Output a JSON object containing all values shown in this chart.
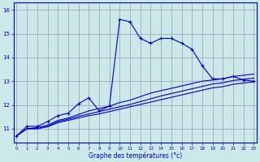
{
  "xlabel": "Graphe des températures (°c)",
  "bg_color": "#cce8e8",
  "grid_color": "#9999bb",
  "line_color": "#0000cc",
  "x_ticks": [
    0,
    1,
    2,
    3,
    4,
    5,
    6,
    7,
    8,
    9,
    10,
    11,
    12,
    13,
    14,
    15,
    16,
    17,
    18,
    19,
    20,
    21,
    22,
    23
  ],
  "y_ticks": [
    11,
    12,
    13,
    14,
    15,
    16
  ],
  "xlim": [
    -0.3,
    23.3
  ],
  "ylim": [
    10.4,
    16.3
  ],
  "series1_x": [
    0,
    1,
    2,
    3,
    4,
    5,
    6,
    7,
    8,
    9,
    10,
    11,
    12,
    13,
    14,
    15,
    16,
    17,
    18,
    19,
    20,
    21,
    22,
    23
  ],
  "series1_y": [
    10.7,
    11.1,
    11.1,
    11.3,
    11.55,
    11.65,
    12.05,
    12.3,
    11.75,
    11.95,
    15.6,
    15.5,
    14.8,
    14.6,
    14.8,
    14.8,
    14.6,
    14.35,
    13.65,
    13.1,
    13.1,
    13.2,
    13.05,
    13.0
  ],
  "series2_x": [
    0,
    1,
    2,
    3,
    4,
    5,
    6,
    7,
    8,
    9,
    10,
    11,
    12,
    13,
    14,
    15,
    16,
    17,
    18,
    19,
    20,
    21,
    22,
    23
  ],
  "series2_y": [
    10.7,
    11.0,
    11.05,
    11.15,
    11.35,
    11.45,
    11.6,
    11.75,
    11.85,
    11.95,
    12.1,
    12.2,
    12.35,
    12.5,
    12.6,
    12.7,
    12.8,
    12.9,
    13.0,
    13.05,
    13.1,
    13.2,
    13.25,
    13.3
  ],
  "series3_x": [
    0,
    1,
    2,
    3,
    4,
    5,
    6,
    7,
    8,
    9,
    10,
    11,
    12,
    13,
    14,
    15,
    16,
    17,
    18,
    19,
    20,
    21,
    22,
    23
  ],
  "series3_y": [
    10.7,
    11.0,
    11.0,
    11.1,
    11.3,
    11.4,
    11.52,
    11.62,
    11.72,
    11.82,
    11.92,
    12.02,
    12.14,
    12.26,
    12.38,
    12.48,
    12.58,
    12.68,
    12.78,
    12.88,
    12.93,
    13.03,
    13.08,
    13.13
  ],
  "series4_x": [
    0,
    1,
    2,
    3,
    4,
    5,
    6,
    7,
    8,
    9,
    10,
    11,
    12,
    13,
    14,
    15,
    16,
    17,
    18,
    19,
    20,
    21,
    22,
    23
  ],
  "series4_y": [
    10.7,
    11.0,
    11.0,
    11.08,
    11.25,
    11.35,
    11.45,
    11.55,
    11.62,
    11.72,
    11.82,
    11.92,
    12.02,
    12.12,
    12.22,
    12.32,
    12.42,
    12.52,
    12.62,
    12.72,
    12.77,
    12.87,
    12.92,
    12.97
  ]
}
